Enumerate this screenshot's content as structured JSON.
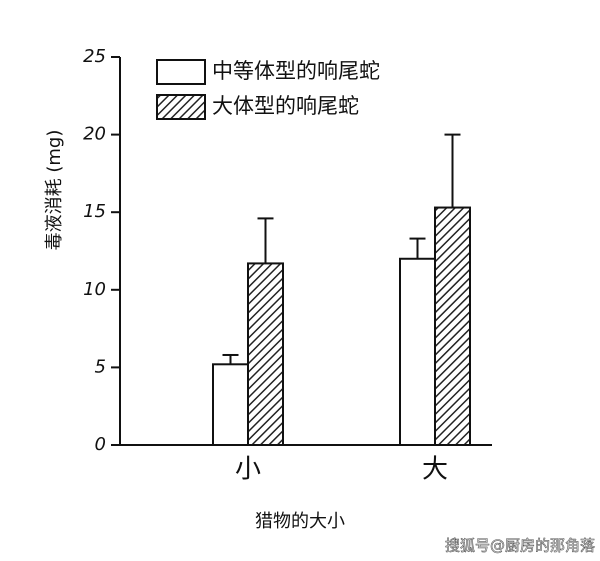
{
  "chart_data": {
    "type": "bar",
    "y_label": "毒液消耗 (mg)",
    "x_label": "猎物的大小",
    "categories": [
      "小",
      "大"
    ],
    "series": [
      {
        "name": "中等体型的响尾蛇",
        "color": "#ffffff",
        "values": [
          5.2,
          12.0
        ],
        "errors": [
          0.6,
          1.3
        ]
      },
      {
        "name": "大体型的响尾蛇",
        "color": "#222222",
        "pattern": "diagonal-hatch",
        "values": [
          11.7,
          15.3
        ],
        "errors": [
          2.9,
          4.7
        ]
      }
    ],
    "ylim": [
      0,
      25
    ],
    "yticks": [
      0,
      5,
      10,
      15,
      20,
      25
    ],
    "legend": "upper-left"
  },
  "watermark": "搜狐号@厨房的那角落"
}
